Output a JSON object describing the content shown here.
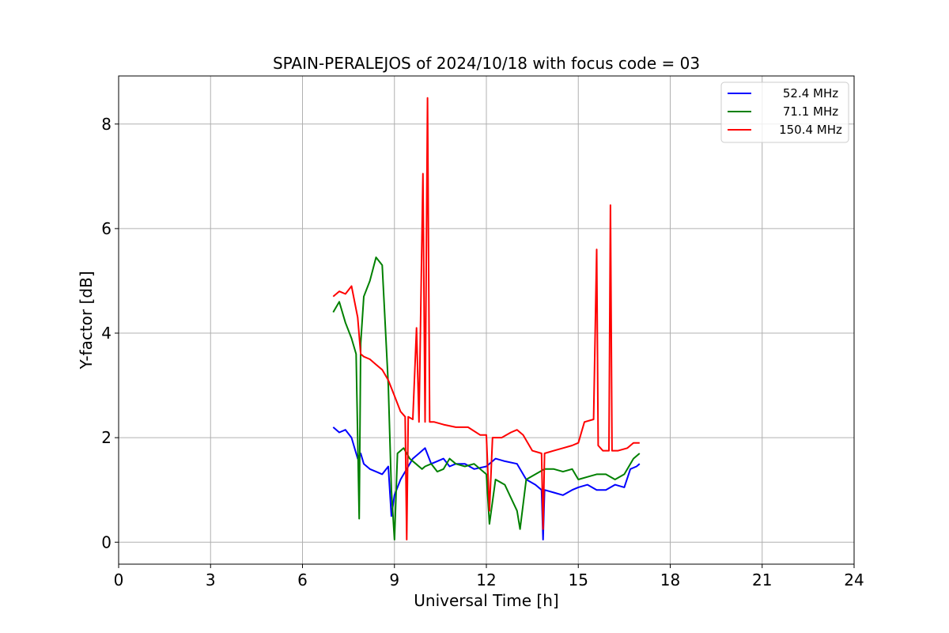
{
  "chart_data": {
    "type": "line",
    "title": "SPAIN-PERALEJOS of 2024/10/18 with focus code = 03",
    "xlabel": "Universal Time [h]",
    "ylabel": "Y-factor [dB]",
    "xlim": [
      0,
      24
    ],
    "ylim": [
      -0.42,
      8.92
    ],
    "xticks": [
      0,
      3,
      6,
      9,
      12,
      15,
      18,
      21,
      24
    ],
    "yticks": [
      0,
      2,
      4,
      6,
      8
    ],
    "grid": true,
    "legend_position": "top-right",
    "series": [
      {
        "name": "52.4 MHz",
        "color": "#0000ff",
        "x": [
          7.0,
          7.2,
          7.4,
          7.6,
          7.8,
          7.9,
          8.0,
          8.2,
          8.4,
          8.6,
          8.8,
          8.9,
          9.0,
          9.2,
          9.4,
          9.6,
          9.8,
          10.0,
          10.2,
          10.4,
          10.6,
          10.8,
          11.0,
          11.3,
          11.6,
          12.0,
          12.3,
          12.6,
          13.0,
          13.3,
          13.6,
          13.8,
          13.85,
          13.9,
          14.2,
          14.5,
          14.8,
          15.0,
          15.3,
          15.6,
          15.9,
          16.2,
          16.5,
          16.7,
          16.9,
          17.0
        ],
        "y": [
          2.2,
          2.1,
          2.15,
          2.0,
          1.6,
          1.7,
          1.5,
          1.4,
          1.35,
          1.3,
          1.45,
          0.5,
          0.9,
          1.2,
          1.4,
          1.6,
          1.7,
          1.8,
          1.5,
          1.55,
          1.6,
          1.45,
          1.5,
          1.5,
          1.4,
          1.45,
          1.6,
          1.55,
          1.5,
          1.2,
          1.1,
          1.0,
          0.05,
          1.0,
          0.95,
          0.9,
          1.0,
          1.05,
          1.1,
          1.0,
          1.0,
          1.1,
          1.05,
          1.4,
          1.45,
          1.5
        ]
      },
      {
        "name": "71.1 MHz",
        "color": "#008000",
        "x": [
          7.0,
          7.2,
          7.4,
          7.6,
          7.75,
          7.85,
          7.9,
          8.0,
          8.2,
          8.4,
          8.6,
          8.8,
          8.9,
          9.0,
          9.1,
          9.3,
          9.5,
          9.7,
          9.9,
          10.0,
          10.2,
          10.4,
          10.6,
          10.8,
          11.0,
          11.3,
          11.6,
          12.0,
          12.1,
          12.3,
          12.6,
          13.0,
          13.1,
          13.3,
          13.6,
          13.9,
          14.2,
          14.5,
          14.8,
          15.0,
          15.3,
          15.6,
          15.9,
          16.2,
          16.5,
          16.8,
          17.0
        ],
        "y": [
          4.4,
          4.6,
          4.2,
          3.9,
          3.6,
          0.45,
          3.8,
          4.7,
          5.0,
          5.45,
          5.3,
          3.0,
          1.0,
          0.05,
          1.7,
          1.8,
          1.6,
          1.5,
          1.4,
          1.45,
          1.5,
          1.35,
          1.4,
          1.6,
          1.5,
          1.45,
          1.5,
          1.3,
          0.35,
          1.2,
          1.1,
          0.6,
          0.25,
          1.2,
          1.3,
          1.4,
          1.4,
          1.35,
          1.4,
          1.2,
          1.25,
          1.3,
          1.3,
          1.2,
          1.3,
          1.6,
          1.7
        ]
      },
      {
        "name": "150.4 MHz",
        "color": "#ff0000",
        "x": [
          7.0,
          7.2,
          7.4,
          7.6,
          7.8,
          7.9,
          8.0,
          8.2,
          8.4,
          8.6,
          8.8,
          9.0,
          9.2,
          9.35,
          9.4,
          9.45,
          9.6,
          9.72,
          9.8,
          9.93,
          10.0,
          10.08,
          10.15,
          10.3,
          10.6,
          11.0,
          11.4,
          11.8,
          12.0,
          12.1,
          12.2,
          12.5,
          12.8,
          13.0,
          13.2,
          13.5,
          13.8,
          13.85,
          13.9,
          14.2,
          14.5,
          14.8,
          15.0,
          15.2,
          15.5,
          15.6,
          15.65,
          15.8,
          16.0,
          16.05,
          16.1,
          16.3,
          16.6,
          16.8,
          17.0
        ],
        "y": [
          4.7,
          4.8,
          4.75,
          4.9,
          4.3,
          3.6,
          3.55,
          3.5,
          3.4,
          3.3,
          3.1,
          2.8,
          2.5,
          2.4,
          0.05,
          2.4,
          2.35,
          4.1,
          2.3,
          7.05,
          2.3,
          8.5,
          2.3,
          2.3,
          2.25,
          2.2,
          2.2,
          2.05,
          2.05,
          0.6,
          2.0,
          2.0,
          2.1,
          2.15,
          2.05,
          1.75,
          1.7,
          0.25,
          1.7,
          1.75,
          1.8,
          1.85,
          1.9,
          2.3,
          2.35,
          5.6,
          1.85,
          1.75,
          1.75,
          6.45,
          1.75,
          1.75,
          1.8,
          1.9,
          1.9
        ]
      }
    ]
  }
}
